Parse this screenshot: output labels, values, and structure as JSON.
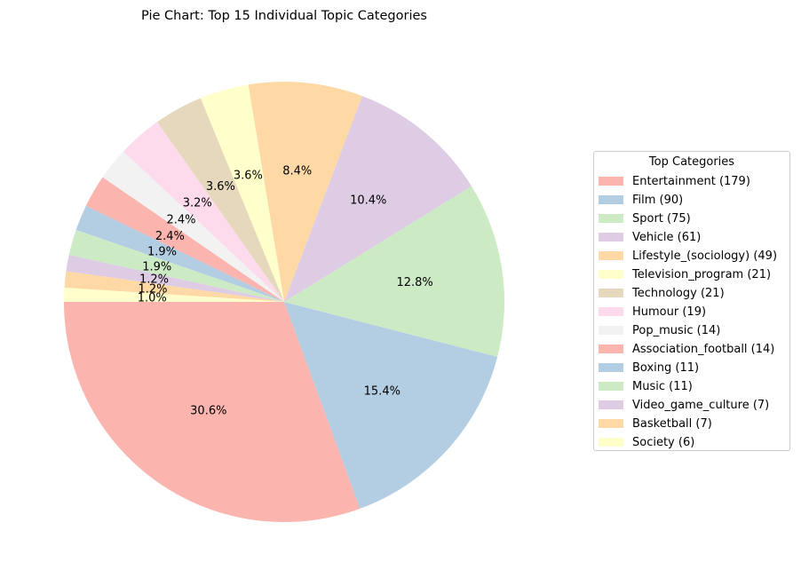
{
  "chart_data": {
    "type": "pie",
    "title": "Pie Chart: Top 15 Individual Topic Categories",
    "legend_title": "Top Categories",
    "legend_position": "right",
    "start_angle_deg": 180,
    "direction": "counterclockwise",
    "slices": [
      {
        "label": "Entertainment",
        "value": 179,
        "pct_label": "30.6%",
        "legend_label": "Entertainment (179)",
        "color": "#fbb4ae"
      },
      {
        "label": "Film",
        "value": 90,
        "pct_label": "15.4%",
        "legend_label": "Film (90)",
        "color": "#b3cde3"
      },
      {
        "label": "Sport",
        "value": 75,
        "pct_label": "12.8%",
        "legend_label": "Sport (75)",
        "color": "#ccebc5"
      },
      {
        "label": "Vehicle",
        "value": 61,
        "pct_label": "10.4%",
        "legend_label": "Vehicle (61)",
        "color": "#decbe4"
      },
      {
        "label": "Lifestyle_(sociology)",
        "value": 49,
        "pct_label": "8.4%",
        "legend_label": "Lifestyle_(sociology) (49)",
        "color": "#fed9a6"
      },
      {
        "label": "Television_program",
        "value": 21,
        "pct_label": "3.6%",
        "legend_label": "Television_program (21)",
        "color": "#ffffcc"
      },
      {
        "label": "Technology",
        "value": 21,
        "pct_label": "3.6%",
        "legend_label": "Technology (21)",
        "color": "#e5d8bd"
      },
      {
        "label": "Humour",
        "value": 19,
        "pct_label": "3.2%",
        "legend_label": "Humour (19)",
        "color": "#fddaec"
      },
      {
        "label": "Pop_music",
        "value": 14,
        "pct_label": "2.4%",
        "legend_label": "Pop_music (14)",
        "color": "#f2f2f2"
      },
      {
        "label": "Association_football",
        "value": 14,
        "pct_label": "2.4%",
        "legend_label": "Association_football (14)",
        "color": "#fbb4ae"
      },
      {
        "label": "Boxing",
        "value": 11,
        "pct_label": "1.9%",
        "legend_label": "Boxing (11)",
        "color": "#b3cde3"
      },
      {
        "label": "Music",
        "value": 11,
        "pct_label": "1.9%",
        "legend_label": "Music (11)",
        "color": "#ccebc5"
      },
      {
        "label": "Video_game_culture",
        "value": 7,
        "pct_label": "1.2%",
        "legend_label": "Video_game_culture (7)",
        "color": "#decbe4"
      },
      {
        "label": "Basketball",
        "value": 7,
        "pct_label": "1.2%",
        "legend_label": "Basketball (7)",
        "color": "#fed9a6"
      },
      {
        "label": "Society",
        "value": 6,
        "pct_label": "1.0%",
        "legend_label": "Society (6)",
        "color": "#ffffcc"
      }
    ]
  }
}
